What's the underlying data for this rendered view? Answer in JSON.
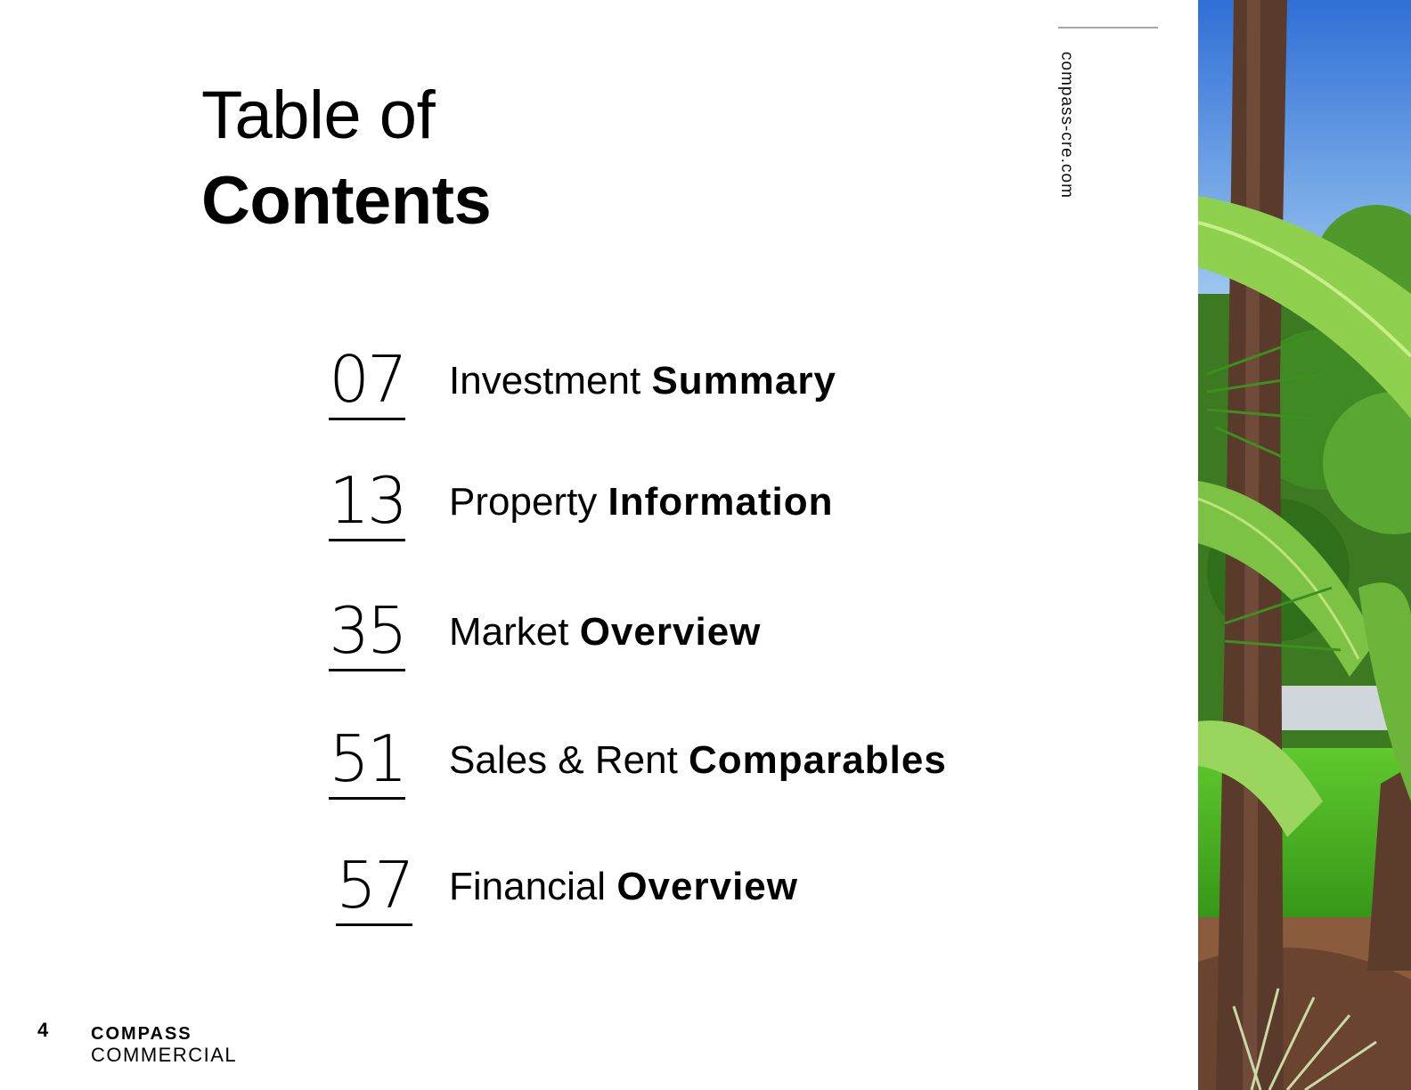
{
  "title": {
    "line1": "Table of",
    "line2": "Contents"
  },
  "toc": [
    {
      "page": "07",
      "label_light": "Investment ",
      "label_bold": "Summary"
    },
    {
      "page": "13",
      "label_light": "Property ",
      "label_bold": "Information"
    },
    {
      "page": "35",
      "label_light": "Market ",
      "label_bold": "Overview"
    },
    {
      "page": "51",
      "label_light": "Sales & Rent ",
      "label_bold": "Comparables"
    },
    {
      "page": "57",
      "label_light": "Financial ",
      "label_bold": "Overview"
    }
  ],
  "sidebar": {
    "url": "compass-cre.com"
  },
  "footer": {
    "page_number": "4",
    "logo_line1": "COMPASS",
    "logo_line2": "COMMERCIAL"
  },
  "photo": {
    "subject": "tropical-garden-palms"
  }
}
